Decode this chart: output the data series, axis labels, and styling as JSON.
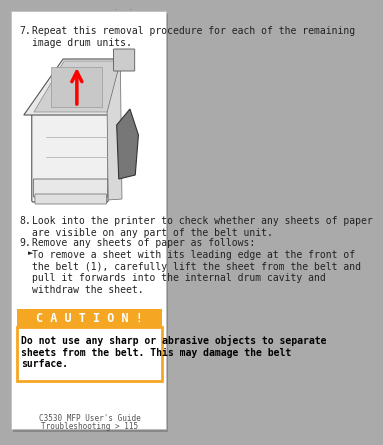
{
  "bg_color": "#ffffff",
  "page_bg": "#f0f0f0",
  "border_color": "#cccccc",
  "step7_num": "7.",
  "step7_text": "Repeat this removal procedure for each of the remaining\nimage drum units.",
  "step8_num": "8.",
  "step8_text": "Look into the printer to check whether any sheets of paper\nare visible on any part of the belt unit.",
  "step9_num": "9.",
  "step9_text": "Remove any sheets of paper as follows:",
  "bullet_text": "To remove a sheet with its leading edge at the front of\nthe belt (1), carefully lift the sheet from the belt and\npull it forwards into the internal drum cavity and\nwithdraw the sheet.",
  "caution_bg": "#f5a623",
  "caution_title": "C A U T I O N !",
  "caution_title_color": "#ffffff",
  "caution_box_border": "#f5a623",
  "caution_text": "Do not use any sharp or abrasive objects to separate\nsheets from the belt. This may damage the belt\nsurface.",
  "caution_text_color": "#000000",
  "footer_line1": "C3530 MFP User's Guide",
  "footer_line2": "Troubleshooting > 115",
  "text_color": "#222222",
  "font_size_body": 7.0,
  "font_size_caution_title": 8.5,
  "font_size_caution_body": 7.0,
  "font_size_footer": 5.5
}
